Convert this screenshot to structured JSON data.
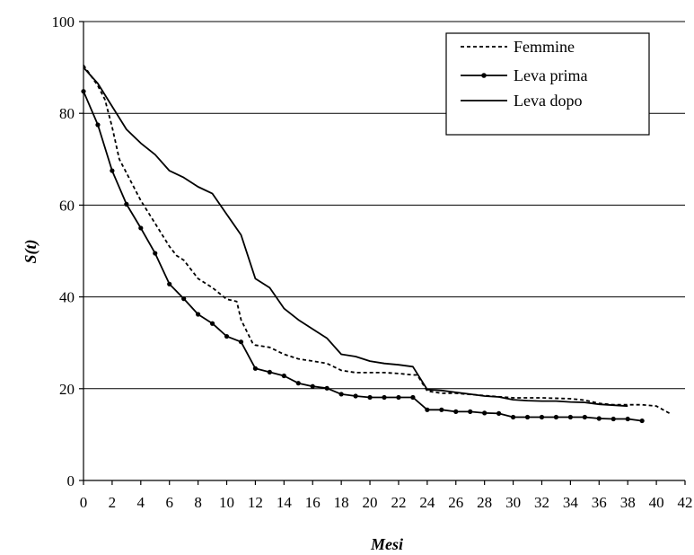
{
  "chart_data": {
    "type": "line",
    "xlabel": "Mesi",
    "ylabel": "S(t)",
    "xlim": [
      0,
      42
    ],
    "ylim": [
      0,
      100
    ],
    "xticks": [
      0,
      2,
      4,
      6,
      8,
      10,
      12,
      14,
      16,
      18,
      20,
      22,
      24,
      26,
      28,
      30,
      32,
      34,
      36,
      38,
      40,
      42
    ],
    "yticks": [
      0,
      20,
      40,
      60,
      80,
      100
    ],
    "grid": "horizontal",
    "legend_position": "top-right",
    "series": [
      {
        "name": "Femmine",
        "style": "dashed",
        "color": "#000000",
        "points": [
          [
            0,
            90.5
          ],
          [
            1,
            86
          ],
          [
            1.5,
            83
          ],
          [
            2,
            77
          ],
          [
            2.5,
            70
          ],
          [
            3,
            67
          ],
          [
            4,
            61
          ],
          [
            5,
            56
          ],
          [
            6,
            51
          ],
          [
            6.5,
            49
          ],
          [
            7,
            48
          ],
          [
            8,
            44
          ],
          [
            9,
            42
          ],
          [
            10,
            39.5
          ],
          [
            10.7,
            39
          ],
          [
            11,
            35
          ],
          [
            11.8,
            30
          ],
          [
            12,
            29.5
          ],
          [
            13,
            29
          ],
          [
            14,
            27.5
          ],
          [
            15,
            26.5
          ],
          [
            16,
            26
          ],
          [
            17,
            25.5
          ],
          [
            18,
            24
          ],
          [
            19,
            23.5
          ],
          [
            20,
            23.5
          ],
          [
            21,
            23.5
          ],
          [
            22,
            23.3
          ],
          [
            23,
            23
          ],
          [
            23.3,
            23
          ],
          [
            24,
            19.5
          ],
          [
            25,
            19
          ],
          [
            26,
            19
          ],
          [
            28,
            18.5
          ],
          [
            30,
            18
          ],
          [
            32,
            18
          ],
          [
            34,
            17.8
          ],
          [
            35,
            17.5
          ],
          [
            36,
            16.8
          ],
          [
            37,
            16.5
          ],
          [
            38,
            16.5
          ],
          [
            39,
            16.5
          ],
          [
            40,
            16.2
          ],
          [
            41,
            14.5
          ]
        ]
      },
      {
        "name": "Leva prima",
        "style": "solid-markers",
        "color": "#000000",
        "points": [
          [
            0,
            84.8
          ],
          [
            1,
            77.5
          ],
          [
            2,
            67.5
          ],
          [
            3,
            60.2
          ],
          [
            4,
            55
          ],
          [
            5,
            49.5
          ],
          [
            6,
            42.8
          ],
          [
            7,
            39.6
          ],
          [
            8,
            36.2
          ],
          [
            9,
            34.2
          ],
          [
            10,
            31.4
          ],
          [
            11,
            30.2
          ],
          [
            12,
            24.4
          ],
          [
            13,
            23.6
          ],
          [
            14,
            22.8
          ],
          [
            15,
            21.2
          ],
          [
            16,
            20.5
          ],
          [
            17,
            20.1
          ],
          [
            18,
            18.8
          ],
          [
            19,
            18.4
          ],
          [
            20,
            18.1
          ],
          [
            21,
            18.1
          ],
          [
            22,
            18.1
          ],
          [
            23,
            18.1
          ],
          [
            24,
            15.4
          ],
          [
            25,
            15.4
          ],
          [
            26,
            15
          ],
          [
            27,
            15
          ],
          [
            28,
            14.7
          ],
          [
            29,
            14.6
          ],
          [
            30,
            13.8
          ],
          [
            31,
            13.8
          ],
          [
            32,
            13.8
          ],
          [
            33,
            13.8
          ],
          [
            34,
            13.8
          ],
          [
            35,
            13.8
          ],
          [
            36,
            13.5
          ],
          [
            37,
            13.4
          ],
          [
            38,
            13.4
          ],
          [
            39,
            13
          ]
        ]
      },
      {
        "name": "Leva dopo",
        "style": "solid",
        "color": "#000000",
        "points": [
          [
            0,
            90
          ],
          [
            1,
            86.5
          ],
          [
            2,
            81.5
          ],
          [
            3,
            76.5
          ],
          [
            4,
            73.5
          ],
          [
            5,
            71
          ],
          [
            6,
            67.5
          ],
          [
            7,
            66
          ],
          [
            8,
            64
          ],
          [
            9,
            62.5
          ],
          [
            10,
            58
          ],
          [
            11,
            53.5
          ],
          [
            12,
            44
          ],
          [
            13,
            42
          ],
          [
            14,
            37.5
          ],
          [
            15,
            35
          ],
          [
            16,
            33
          ],
          [
            17,
            31
          ],
          [
            18,
            27.5
          ],
          [
            19,
            27
          ],
          [
            20,
            26
          ],
          [
            21,
            25.5
          ],
          [
            22,
            25.2
          ],
          [
            23,
            24.8
          ],
          [
            24,
            19.8
          ],
          [
            25,
            19.6
          ],
          [
            26,
            19.2
          ],
          [
            27,
            18.8
          ],
          [
            28,
            18.4
          ],
          [
            29,
            18.2
          ],
          [
            30,
            17.6
          ],
          [
            31,
            17.4
          ],
          [
            32,
            17.3
          ],
          [
            33,
            17.3
          ],
          [
            34,
            17.1
          ],
          [
            35,
            17
          ],
          [
            36,
            16.6
          ],
          [
            37,
            16.4
          ],
          [
            38,
            16.2
          ]
        ]
      }
    ]
  }
}
